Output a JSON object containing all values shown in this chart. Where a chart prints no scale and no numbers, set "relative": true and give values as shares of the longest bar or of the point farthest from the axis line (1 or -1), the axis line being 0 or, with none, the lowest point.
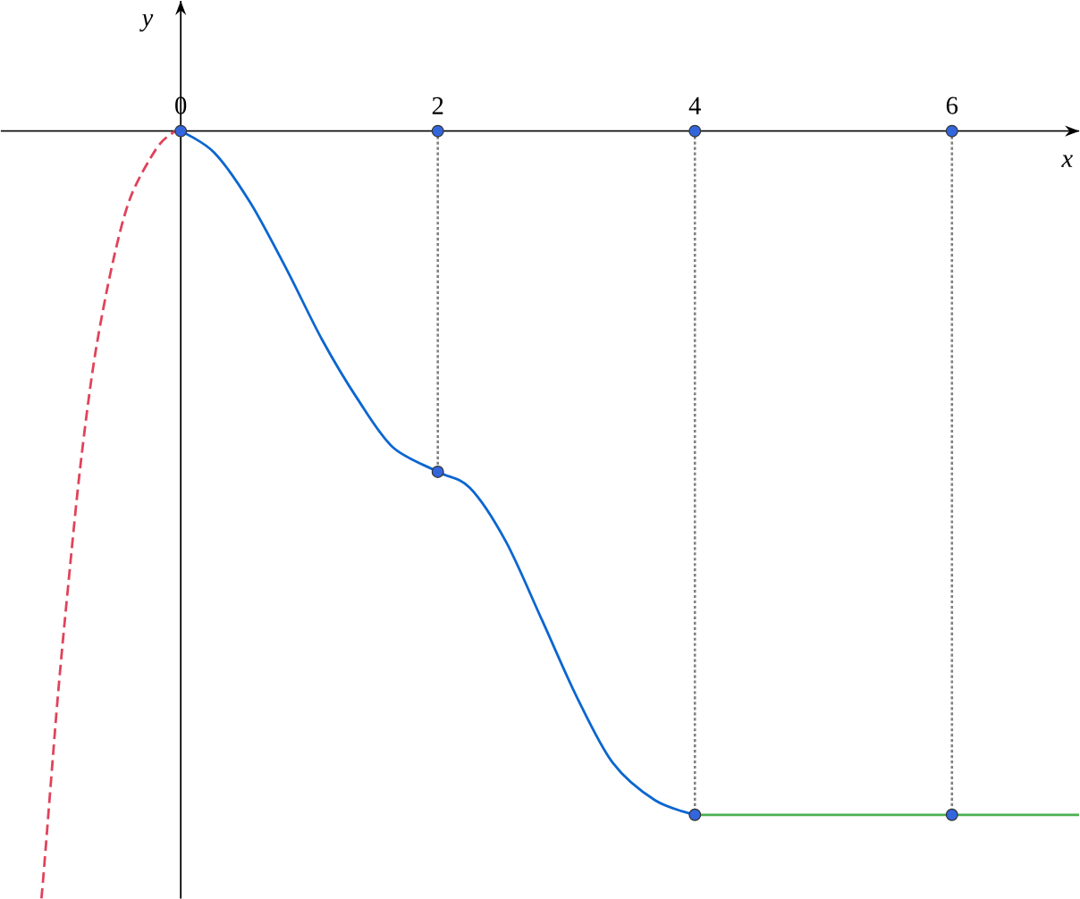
{
  "chart_data": {
    "type": "line",
    "relative": true,
    "xlabel": "x",
    "ylabel": "y",
    "xlim": [
      -1.4,
      6.99
    ],
    "xticks": [
      0,
      2,
      4,
      6
    ],
    "tick_labels": "x",
    "series": [
      {
        "type": "line",
        "line_style": "dashed",
        "color": "#e0435a",
        "x": [
          -1.1,
          -1.08,
          -0.96,
          -0.875,
          -0.78,
          -0.67,
          -0.53,
          -0.39,
          -0.19,
          -0.06,
          0
        ],
        "values": [
          -1.0,
          -0.993,
          -0.744,
          -0.591,
          -0.435,
          -0.295,
          -0.172,
          -0.086,
          -0.023,
          -0.002,
          0
        ]
      },
      {
        "type": "line",
        "line_style": "solid",
        "color": "#0b66d0",
        "x": [
          0,
          0.26,
          0.54,
          0.82,
          1.1,
          1.375,
          1.65,
          2,
          2.25,
          2.53,
          2.81,
          3.08,
          3.36,
          3.69,
          4
        ],
        "values": [
          0,
          -0.028,
          -0.093,
          -0.179,
          -0.272,
          -0.349,
          -0.412,
          -0.444,
          -0.465,
          -0.535,
          -0.637,
          -0.737,
          -0.823,
          -0.872,
          -0.891
        ]
      },
      {
        "type": "line",
        "line_style": "solid",
        "color": "#4caf50",
        "x": [
          4,
          6.99
        ],
        "values": [
          -0.891,
          -0.891
        ]
      },
      {
        "type": "line",
        "line_style": "dotted",
        "color": "#808080",
        "x": [
          2,
          2
        ],
        "values": [
          0,
          -0.444
        ]
      },
      {
        "type": "line",
        "line_style": "dotted",
        "color": "#808080",
        "x": [
          4,
          4
        ],
        "values": [
          0,
          -0.891
        ]
      },
      {
        "type": "line",
        "line_style": "dotted",
        "color": "#808080",
        "x": [
          6,
          6
        ],
        "values": [
          0,
          -0.891
        ]
      },
      {
        "type": "scatter",
        "color": "#3366dd",
        "x": [
          0,
          2,
          4,
          6,
          2,
          4,
          6
        ],
        "values": [
          0,
          0,
          0,
          0,
          -0.444,
          -0.891,
          -0.891
        ]
      }
    ]
  }
}
